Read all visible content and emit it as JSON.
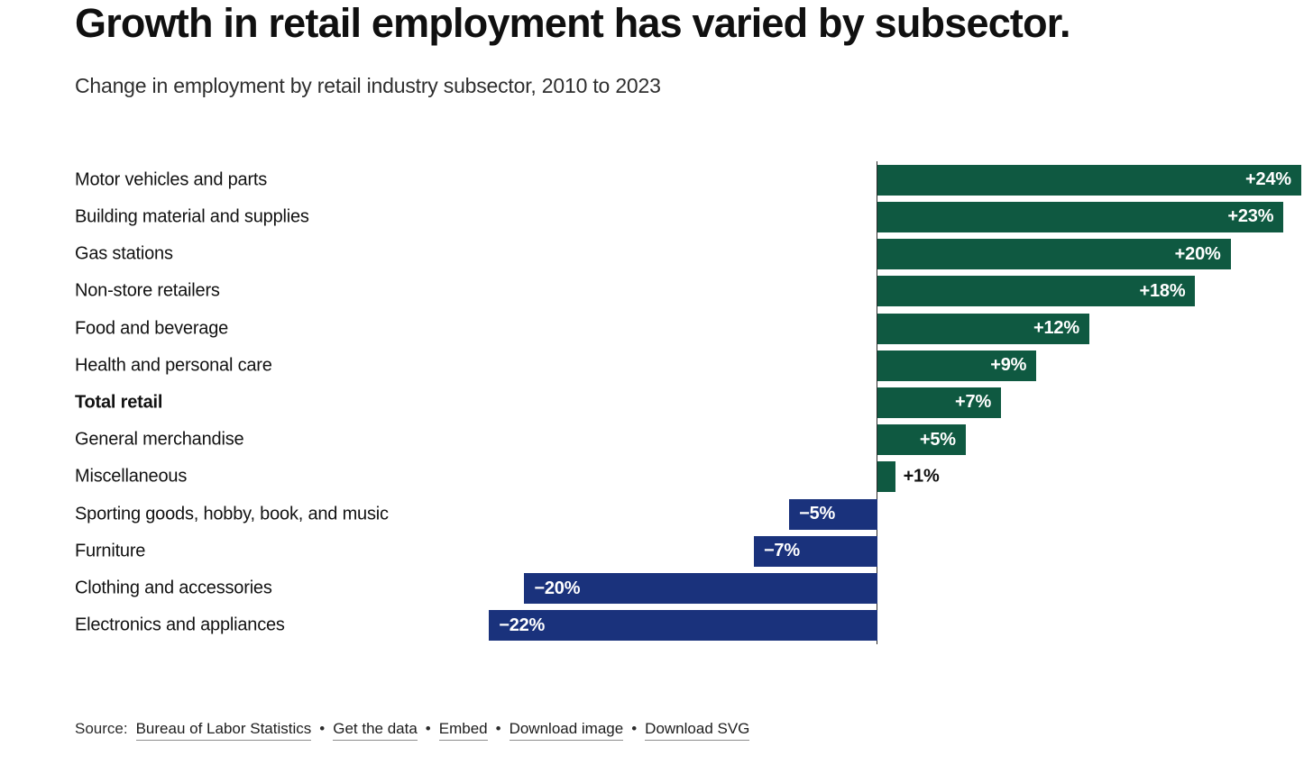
{
  "header": {
    "title": "Growth in retail employment has varied by subsector.",
    "subtitle": "Change in employment by retail industry subsector, 2010 to 2023"
  },
  "chart_data": {
    "type": "bar",
    "orientation": "horizontal",
    "unit": "%",
    "baseline": 0,
    "xlim": [
      -24.7,
      24.7
    ],
    "grid": false,
    "legend": "none",
    "categories": [
      "Motor vehicles and parts",
      "Building material and supplies",
      "Gas stations",
      "Non-store retailers",
      "Food and beverage",
      "Health and personal care",
      "Total retail",
      "General merchandise",
      "Miscellaneous",
      "Sporting goods, hobby, book, and music",
      "Furniture",
      "Clothing and accessories",
      "Electronics and appliances"
    ],
    "values": [
      24,
      23,
      20,
      18,
      12,
      9,
      7,
      5,
      1,
      -5,
      -7,
      -20,
      -22
    ],
    "value_labels": [
      "+24%",
      "+23%",
      "+20%",
      "+18%",
      "+12%",
      "+9%",
      "+7%",
      "+5%",
      "+1%",
      "−5%",
      "−7%",
      "−20%",
      "−22%"
    ],
    "emphasized_category": "Total retail",
    "colors": {
      "positive": "#0f5941",
      "negative": "#1a327c",
      "label_inside": "#ffffff",
      "label_outside": "#111111"
    }
  },
  "footer": {
    "source_label": "Source:",
    "source_link": "Bureau of Labor Statistics",
    "separator": "•",
    "links": [
      "Get the data",
      "Embed",
      "Download image",
      "Download SVG"
    ]
  }
}
